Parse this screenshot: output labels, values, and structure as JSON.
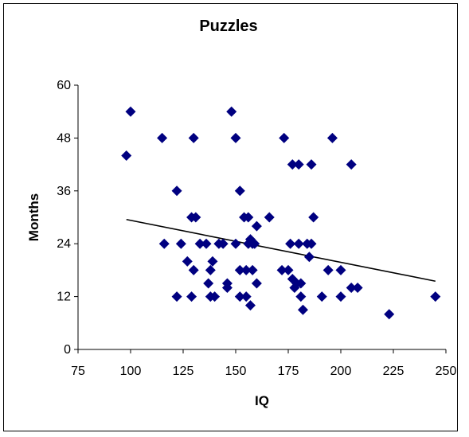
{
  "chart_data": {
    "type": "scatter",
    "title": "Puzzles",
    "xlabel": "IQ",
    "ylabel": "Months",
    "xlim": [
      75,
      250
    ],
    "ylim": [
      0,
      60
    ],
    "xticks": [
      75,
      100,
      125,
      150,
      175,
      200,
      225,
      250
    ],
    "yticks": [
      0,
      12,
      24,
      36,
      48,
      60
    ],
    "grid": false,
    "legend": "none",
    "marker": "diamond",
    "marker_color": "#000080",
    "trendline": {
      "x1": 98,
      "y1": 29.5,
      "x2": 245,
      "y2": 15.5,
      "color": "#000000"
    },
    "points": [
      [
        98,
        44
      ],
      [
        100,
        54
      ],
      [
        115,
        48
      ],
      [
        116,
        24
      ],
      [
        122,
        36
      ],
      [
        122,
        12
      ],
      [
        124,
        24
      ],
      [
        127,
        20
      ],
      [
        129,
        30
      ],
      [
        129,
        12
      ],
      [
        130,
        48
      ],
      [
        130,
        18
      ],
      [
        131,
        30
      ],
      [
        133,
        24
      ],
      [
        136,
        24
      ],
      [
        137,
        15
      ],
      [
        138,
        18
      ],
      [
        138,
        12
      ],
      [
        139,
        20
      ],
      [
        140,
        12
      ],
      [
        142,
        24
      ],
      [
        144,
        24
      ],
      [
        146,
        15
      ],
      [
        146,
        14
      ],
      [
        148,
        54
      ],
      [
        150,
        48
      ],
      [
        150,
        24
      ],
      [
        152,
        36
      ],
      [
        152,
        18
      ],
      [
        152,
        12
      ],
      [
        154,
        30
      ],
      [
        155,
        18
      ],
      [
        155,
        12
      ],
      [
        156,
        30
      ],
      [
        156,
        24
      ],
      [
        157,
        25
      ],
      [
        157,
        10
      ],
      [
        158,
        24
      ],
      [
        158,
        18
      ],
      [
        159,
        24
      ],
      [
        160,
        28
      ],
      [
        160,
        15
      ],
      [
        166,
        30
      ],
      [
        172,
        18
      ],
      [
        173,
        48
      ],
      [
        175,
        18
      ],
      [
        176,
        24
      ],
      [
        177,
        16
      ],
      [
        177,
        42
      ],
      [
        178,
        14
      ],
      [
        179,
        15
      ],
      [
        180,
        42
      ],
      [
        180,
        24
      ],
      [
        181,
        12
      ],
      [
        181,
        15
      ],
      [
        182,
        9
      ],
      [
        184,
        24
      ],
      [
        185,
        21
      ],
      [
        186,
        42
      ],
      [
        186,
        24
      ],
      [
        187,
        30
      ],
      [
        191,
        12
      ],
      [
        194,
        18
      ],
      [
        196,
        48
      ],
      [
        200,
        18
      ],
      [
        200,
        12
      ],
      [
        205,
        42
      ],
      [
        205,
        14
      ],
      [
        208,
        14
      ],
      [
        223,
        8
      ],
      [
        245,
        12
      ]
    ]
  }
}
